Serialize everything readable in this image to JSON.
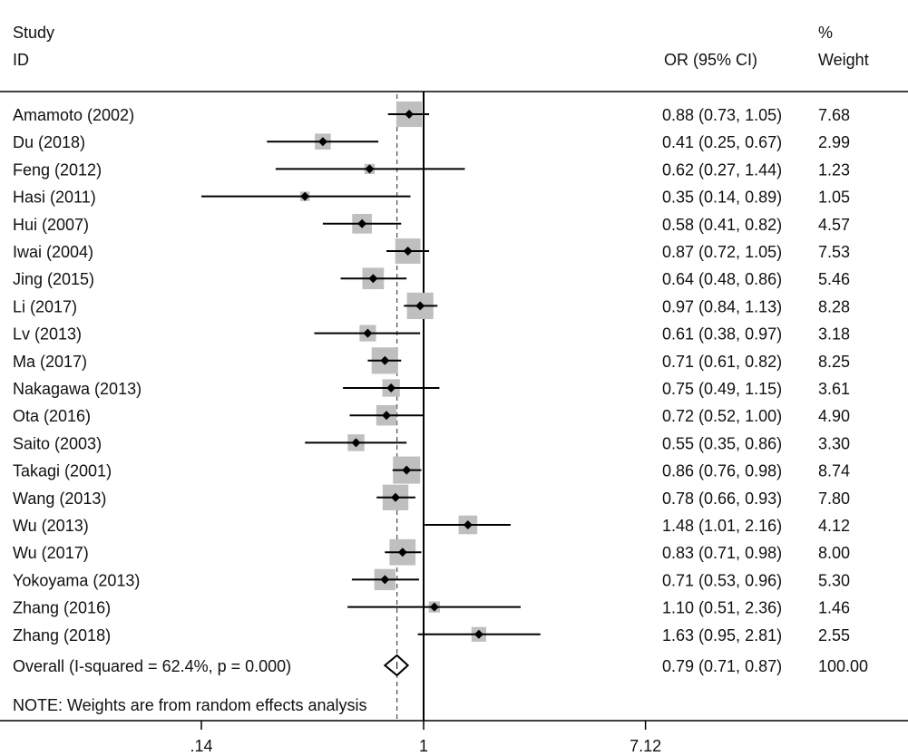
{
  "chart_data": {
    "type": "forest",
    "scale": "log",
    "header": {
      "study_line1": "Study",
      "study_line2": "ID",
      "or_label": "OR (95% CI)",
      "weight_line1": "%",
      "weight_line2": "Weight"
    },
    "studies": [
      {
        "id": "Amamoto (2002)",
        "or": 0.88,
        "lo": 0.73,
        "hi": 1.05,
        "ci_text": "0.88 (0.73, 1.05)",
        "weight": 7.68,
        "weight_text": "7.68"
      },
      {
        "id": "Du (2018)",
        "or": 0.41,
        "lo": 0.25,
        "hi": 0.67,
        "ci_text": "0.41 (0.25, 0.67)",
        "weight": 2.99,
        "weight_text": "2.99"
      },
      {
        "id": "Feng (2012)",
        "or": 0.62,
        "lo": 0.27,
        "hi": 1.44,
        "ci_text": "0.62 (0.27, 1.44)",
        "weight": 1.23,
        "weight_text": "1.23"
      },
      {
        "id": "Hasi (2011)",
        "or": 0.35,
        "lo": 0.14,
        "hi": 0.89,
        "ci_text": "0.35 (0.14, 0.89)",
        "weight": 1.05,
        "weight_text": "1.05"
      },
      {
        "id": "Hui (2007)",
        "or": 0.58,
        "lo": 0.41,
        "hi": 0.82,
        "ci_text": "0.58 (0.41, 0.82)",
        "weight": 4.57,
        "weight_text": "4.57"
      },
      {
        "id": "Iwai (2004)",
        "or": 0.87,
        "lo": 0.72,
        "hi": 1.05,
        "ci_text": "0.87 (0.72, 1.05)",
        "weight": 7.53,
        "weight_text": "7.53"
      },
      {
        "id": "Jing (2015)",
        "or": 0.64,
        "lo": 0.48,
        "hi": 0.86,
        "ci_text": "0.64 (0.48, 0.86)",
        "weight": 5.46,
        "weight_text": "5.46"
      },
      {
        "id": "Li (2017)",
        "or": 0.97,
        "lo": 0.84,
        "hi": 1.13,
        "ci_text": "0.97 (0.84, 1.13)",
        "weight": 8.28,
        "weight_text": "8.28"
      },
      {
        "id": "Lv (2013)",
        "or": 0.61,
        "lo": 0.38,
        "hi": 0.97,
        "ci_text": "0.61 (0.38, 0.97)",
        "weight": 3.18,
        "weight_text": "3.18"
      },
      {
        "id": "Ma (2017)",
        "or": 0.71,
        "lo": 0.61,
        "hi": 0.82,
        "ci_text": "0.71 (0.61, 0.82)",
        "weight": 8.25,
        "weight_text": "8.25"
      },
      {
        "id": "Nakagawa (2013)",
        "or": 0.75,
        "lo": 0.49,
        "hi": 1.15,
        "ci_text": "0.75 (0.49, 1.15)",
        "weight": 3.61,
        "weight_text": "3.61"
      },
      {
        "id": "Ota (2016)",
        "or": 0.72,
        "lo": 0.52,
        "hi": 1.0,
        "ci_text": "0.72 (0.52, 1.00)",
        "weight": 4.9,
        "weight_text": "4.90"
      },
      {
        "id": "Saito (2003)",
        "or": 0.55,
        "lo": 0.35,
        "hi": 0.86,
        "ci_text": "0.55 (0.35, 0.86)",
        "weight": 3.3,
        "weight_text": "3.30"
      },
      {
        "id": "Takagi (2001)",
        "or": 0.86,
        "lo": 0.76,
        "hi": 0.98,
        "ci_text": "0.86 (0.76, 0.98)",
        "weight": 8.74,
        "weight_text": "8.74"
      },
      {
        "id": "Wang (2013)",
        "or": 0.78,
        "lo": 0.66,
        "hi": 0.93,
        "ci_text": "0.78 (0.66, 0.93)",
        "weight": 7.8,
        "weight_text": "7.80"
      },
      {
        "id": "Wu (2013)",
        "or": 1.48,
        "lo": 1.01,
        "hi": 2.16,
        "ci_text": "1.48 (1.01, 2.16)",
        "weight": 4.12,
        "weight_text": "4.12"
      },
      {
        "id": "Wu (2017)",
        "or": 0.83,
        "lo": 0.71,
        "hi": 0.98,
        "ci_text": "0.83 (0.71, 0.98)",
        "weight": 8.0,
        "weight_text": "8.00"
      },
      {
        "id": "Yokoyama (2013)",
        "or": 0.71,
        "lo": 0.53,
        "hi": 0.96,
        "ci_text": "0.71 (0.53, 0.96)",
        "weight": 5.3,
        "weight_text": "5.30"
      },
      {
        "id": "Zhang (2016)",
        "or": 1.1,
        "lo": 0.51,
        "hi": 2.36,
        "ci_text": "1.10 (0.51, 2.36)",
        "weight": 1.46,
        "weight_text": "1.46"
      },
      {
        "id": "Zhang (2018)",
        "or": 1.63,
        "lo": 0.95,
        "hi": 2.81,
        "ci_text": "1.63 (0.95, 2.81)",
        "weight": 2.55,
        "weight_text": "2.55"
      }
    ],
    "overall": {
      "label": "Overall  (I-squared = 62.4%, p = 0.000)",
      "or": 0.79,
      "lo": 0.71,
      "hi": 0.87,
      "ci_text": "0.79 (0.71, 0.87)",
      "weight_text": "100.00"
    },
    "note": "NOTE: Weights are from random effects analysis",
    "x_ticks": [
      {
        "value": 0.14,
        "label": ".14"
      },
      {
        "value": 1,
        "label": "1"
      },
      {
        "value": 7.12,
        "label": "7.12"
      }
    ],
    "null_value": 1,
    "colors": {
      "box": "#bfbfbf",
      "line": "#000000",
      "dashed": "#555555",
      "text": "#111111"
    }
  }
}
